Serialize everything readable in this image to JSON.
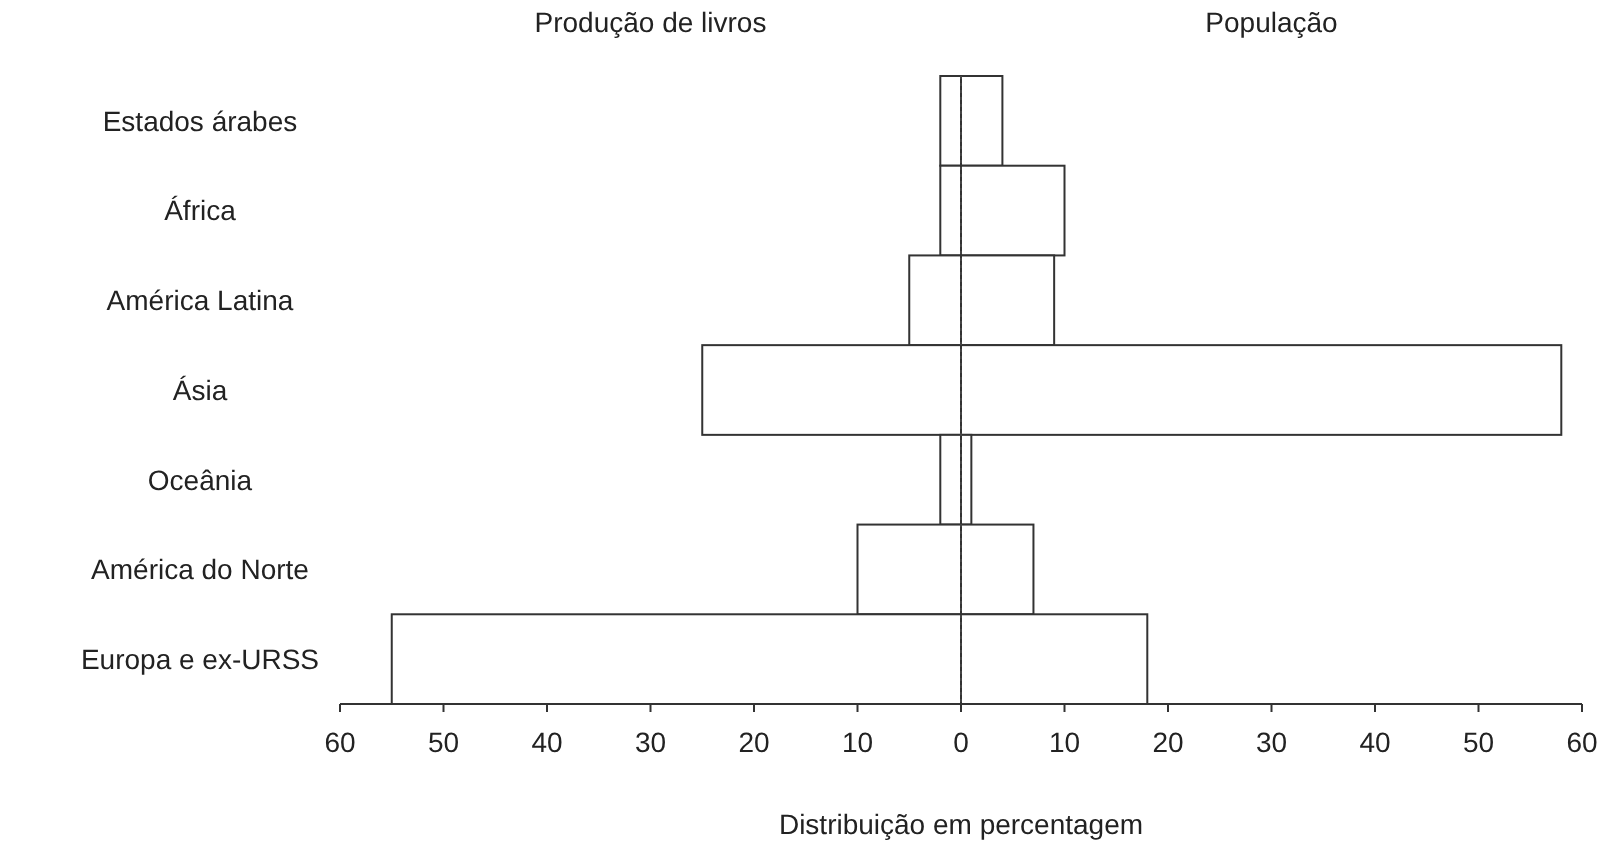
{
  "chart_data": {
    "type": "bar",
    "orientation": "horizontal",
    "stacked": true,
    "xlabel": "Distribuição em percentagem",
    "categories": [
      "Estados árabes",
      "África",
      "América Latina",
      "Ásia",
      "Oceânia",
      "América do Norte",
      "Europa e ex-URSS"
    ],
    "series": [
      {
        "name": "Produção de livros",
        "color": "#ffffff",
        "values": [
          -2,
          -2,
          -5,
          -25,
          -2,
          -10,
          -55
        ]
      },
      {
        "name": "População",
        "color": "#ffffff",
        "values": [
          4,
          10,
          9,
          58,
          1,
          7,
          18
        ]
      }
    ],
    "xlim": [
      -60,
      60
    ],
    "xticks": [
      {
        "value": -60,
        "label": "60"
      },
      {
        "value": -50,
        "label": "50"
      },
      {
        "value": -40,
        "label": "40"
      },
      {
        "value": -30,
        "label": "30"
      },
      {
        "value": -20,
        "label": "20"
      },
      {
        "value": -10,
        "label": "10"
      },
      0,
      10,
      20,
      30,
      40,
      50,
      60
    ],
    "ref_lines": [
      {
        "axis": "x",
        "value": 0,
        "line_style": "dotted",
        "color": "#444444"
      }
    ],
    "grid": false
  }
}
